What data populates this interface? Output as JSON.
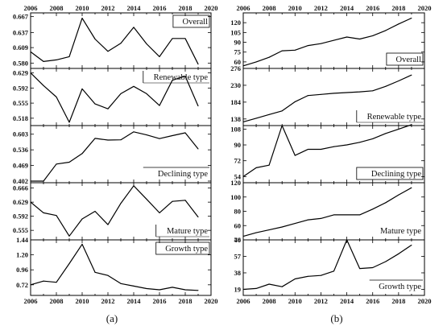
{
  "chart_data": [
    {
      "type": "line",
      "column": "left",
      "row": 0,
      "label": "Overall",
      "label_style": "boxed",
      "label_corner": "top-right",
      "x": [
        2006,
        2007,
        2008,
        2009,
        2010,
        2011,
        2012,
        2013,
        2014,
        2015,
        2016,
        2017,
        2018,
        2019
      ],
      "values": [
        0.601,
        0.583,
        0.586,
        0.592,
        0.664,
        0.625,
        0.602,
        0.617,
        0.647,
        0.616,
        0.592,
        0.626,
        0.626,
        0.578
      ],
      "ylim": [
        0.57,
        0.674
      ],
      "yticks": [
        "0.580",
        "0.609",
        "0.637",
        "0.667"
      ],
      "ytick_values": [
        0.58,
        0.609,
        0.637,
        0.667
      ],
      "xlim": [
        2006,
        2020
      ],
      "xticks": [
        "2006",
        "2008",
        "2010",
        "2012",
        "2014",
        "2016",
        "2018",
        "2020"
      ],
      "xticks_position": "top"
    },
    {
      "type": "line",
      "column": "left",
      "row": 1,
      "label": "Renewable type",
      "label_style": "bracket",
      "label_corner": "top-right",
      "x": [
        2006,
        2007,
        2008,
        2009,
        2010,
        2011,
        2012,
        2013,
        2014,
        2015,
        2016,
        2017,
        2018,
        2019
      ],
      "values": [
        0.629,
        0.598,
        0.57,
        0.508,
        0.59,
        0.553,
        0.541,
        0.578,
        0.596,
        0.578,
        0.549,
        0.611,
        0.621,
        0.548
      ],
      "ylim": [
        0.5,
        0.64
      ],
      "yticks": [
        "0.518",
        "0.555",
        "0.592",
        "0.629"
      ],
      "ytick_values": [
        0.518,
        0.555,
        0.592,
        0.629
      ],
      "xlim": [
        2006,
        2020
      ]
    },
    {
      "type": "line",
      "column": "left",
      "row": 2,
      "label": "Declining type",
      "label_style": "underline",
      "label_corner": "bottom-right",
      "x": [
        2006,
        2007,
        2008,
        2009,
        2010,
        2011,
        2012,
        2013,
        2014,
        2015,
        2016,
        2017,
        2018,
        2019
      ],
      "values": [
        0.402,
        0.402,
        0.475,
        0.483,
        0.52,
        0.585,
        0.578,
        0.579,
        0.613,
        0.6,
        0.584,
        0.597,
        0.609,
        0.54
      ],
      "ylim": [
        0.395,
        0.64
      ],
      "yticks": [
        "0.402",
        "0.469",
        "0.536",
        "0.603"
      ],
      "ytick_values": [
        0.402,
        0.469,
        0.536,
        0.603
      ],
      "xlim": [
        2006,
        2020
      ]
    },
    {
      "type": "line",
      "column": "left",
      "row": 3,
      "label": "Mature type",
      "label_style": "bracket",
      "label_corner": "bottom-right",
      "x": [
        2006,
        2007,
        2008,
        2009,
        2010,
        2011,
        2012,
        2013,
        2014,
        2015,
        2016,
        2017,
        2018,
        2019
      ],
      "values": [
        0.629,
        0.601,
        0.594,
        0.54,
        0.585,
        0.605,
        0.57,
        0.626,
        0.672,
        0.637,
        0.601,
        0.631,
        0.634,
        0.59
      ],
      "ylim": [
        0.53,
        0.68
      ],
      "yticks": [
        "0.555",
        "0.592",
        "0.629",
        "0.666"
      ],
      "ytick_values": [
        0.555,
        0.592,
        0.629,
        0.666
      ],
      "xlim": [
        2006,
        2020
      ]
    },
    {
      "type": "line",
      "column": "left",
      "row": 4,
      "label": "Growth type",
      "label_style": "boxed",
      "label_corner": "top-right",
      "x": [
        2006,
        2007,
        2008,
        2009,
        2010,
        2011,
        2012,
        2013,
        2014,
        2015,
        2016,
        2017,
        2018,
        2019
      ],
      "values": [
        0.72,
        0.78,
        0.76,
        1.06,
        1.37,
        0.92,
        0.87,
        0.74,
        0.7,
        0.66,
        0.64,
        0.68,
        0.64,
        0.63
      ],
      "ylim": [
        0.55,
        1.44
      ],
      "yticks": [
        "0.72",
        "0.96",
        "1.20",
        "1.44"
      ],
      "ytick_values": [
        0.72,
        0.96,
        1.2,
        1.44
      ],
      "xlim": [
        2006,
        2020
      ],
      "xticks": [
        "2006",
        "2008",
        "2010",
        "2012",
        "2014",
        "2016",
        "2018",
        "2020"
      ],
      "xticks_position": "bottom"
    },
    {
      "type": "line",
      "column": "right",
      "row": 0,
      "label": "Overall",
      "label_style": "boxed",
      "label_corner": "bottom-right",
      "x": [
        2006,
        2007,
        2008,
        2009,
        2010,
        2011,
        2012,
        2013,
        2014,
        2015,
        2016,
        2017,
        2018,
        2019
      ],
      "values": [
        54,
        60,
        67,
        77,
        78,
        85,
        88,
        93,
        98,
        95,
        100,
        108,
        118,
        127
      ],
      "ylim": [
        50,
        135
      ],
      "yticks": [
        "60",
        "75",
        "90",
        "105",
        "120"
      ],
      "ytick_values": [
        60,
        75,
        90,
        105,
        120
      ],
      "xlim": [
        2006,
        2020
      ],
      "xticks": [
        "2006",
        "2008",
        "2010",
        "2012",
        "2014",
        "2016",
        "2018",
        "2020"
      ],
      "xticks_position": "top"
    },
    {
      "type": "line",
      "column": "right",
      "row": 1,
      "label": "Renewable type",
      "label_style": "bracket",
      "label_corner": "bottom-right",
      "x": [
        2006,
        2007,
        2008,
        2009,
        2010,
        2011,
        2012,
        2013,
        2014,
        2015,
        2016,
        2017,
        2018,
        2019
      ],
      "values": [
        130,
        140,
        150,
        160,
        185,
        202,
        205,
        208,
        210,
        212,
        215,
        227,
        242,
        258
      ],
      "ylim": [
        120,
        276
      ],
      "yticks": [
        "138",
        "184",
        "230",
        "276"
      ],
      "ytick_values": [
        138,
        184,
        230,
        276
      ],
      "xlim": [
        2006,
        2020
      ]
    },
    {
      "type": "line",
      "column": "right",
      "row": 2,
      "label": "Declining type",
      "label_style": "boxed",
      "label_corner": "bottom-right",
      "x": [
        2006,
        2007,
        2008,
        2009,
        2010,
        2011,
        2012,
        2013,
        2014,
        2015,
        2016,
        2017,
        2018,
        2019
      ],
      "values": [
        54,
        64,
        67,
        112,
        78,
        85,
        85,
        88,
        90,
        93,
        97,
        103,
        108,
        113
      ],
      "ylim": [
        47,
        112
      ],
      "yticks": [
        "54",
        "72",
        "90",
        "108"
      ],
      "ytick_values": [
        54,
        72,
        90,
        108
      ],
      "xlim": [
        2006,
        2020
      ]
    },
    {
      "type": "line",
      "column": "right",
      "row": 3,
      "label": "Mature type",
      "label_style": "plain",
      "label_corner": "bottom-right",
      "x": [
        2006,
        2007,
        2008,
        2009,
        2010,
        2011,
        2012,
        2013,
        2014,
        2015,
        2016,
        2017,
        2018,
        2019
      ],
      "values": [
        45,
        50,
        54,
        58,
        63,
        68,
        70,
        75,
        75,
        75,
        83,
        92,
        103,
        113
      ],
      "ylim": [
        40,
        120
      ],
      "yticks": [
        "40",
        "60",
        "80",
        "100",
        "120"
      ],
      "ytick_values": [
        40,
        60,
        80,
        100,
        120
      ],
      "xlim": [
        2006,
        2020
      ]
    },
    {
      "type": "line",
      "column": "right",
      "row": 4,
      "label": "Growth type",
      "label_style": "underline",
      "label_corner": "bottom-right",
      "x": [
        2006,
        2007,
        2008,
        2009,
        2010,
        2011,
        2012,
        2013,
        2014,
        2015,
        2016,
        2017,
        2018,
        2019
      ],
      "values": [
        19,
        20,
        25,
        22,
        31,
        34,
        35,
        40,
        76,
        43,
        44,
        51,
        60,
        70
      ],
      "ylim": [
        12,
        76
      ],
      "yticks": [
        "19",
        "38",
        "57",
        "76"
      ],
      "ytick_values": [
        19,
        38,
        57,
        76
      ],
      "xlim": [
        2006,
        2020
      ],
      "xticks": [
        "2006",
        "2008",
        "2010",
        "2012",
        "2014",
        "2016",
        "2018",
        "2020"
      ],
      "xticks_position": "bottom"
    }
  ],
  "captions": {
    "left": "(a)",
    "right": "(b)"
  }
}
